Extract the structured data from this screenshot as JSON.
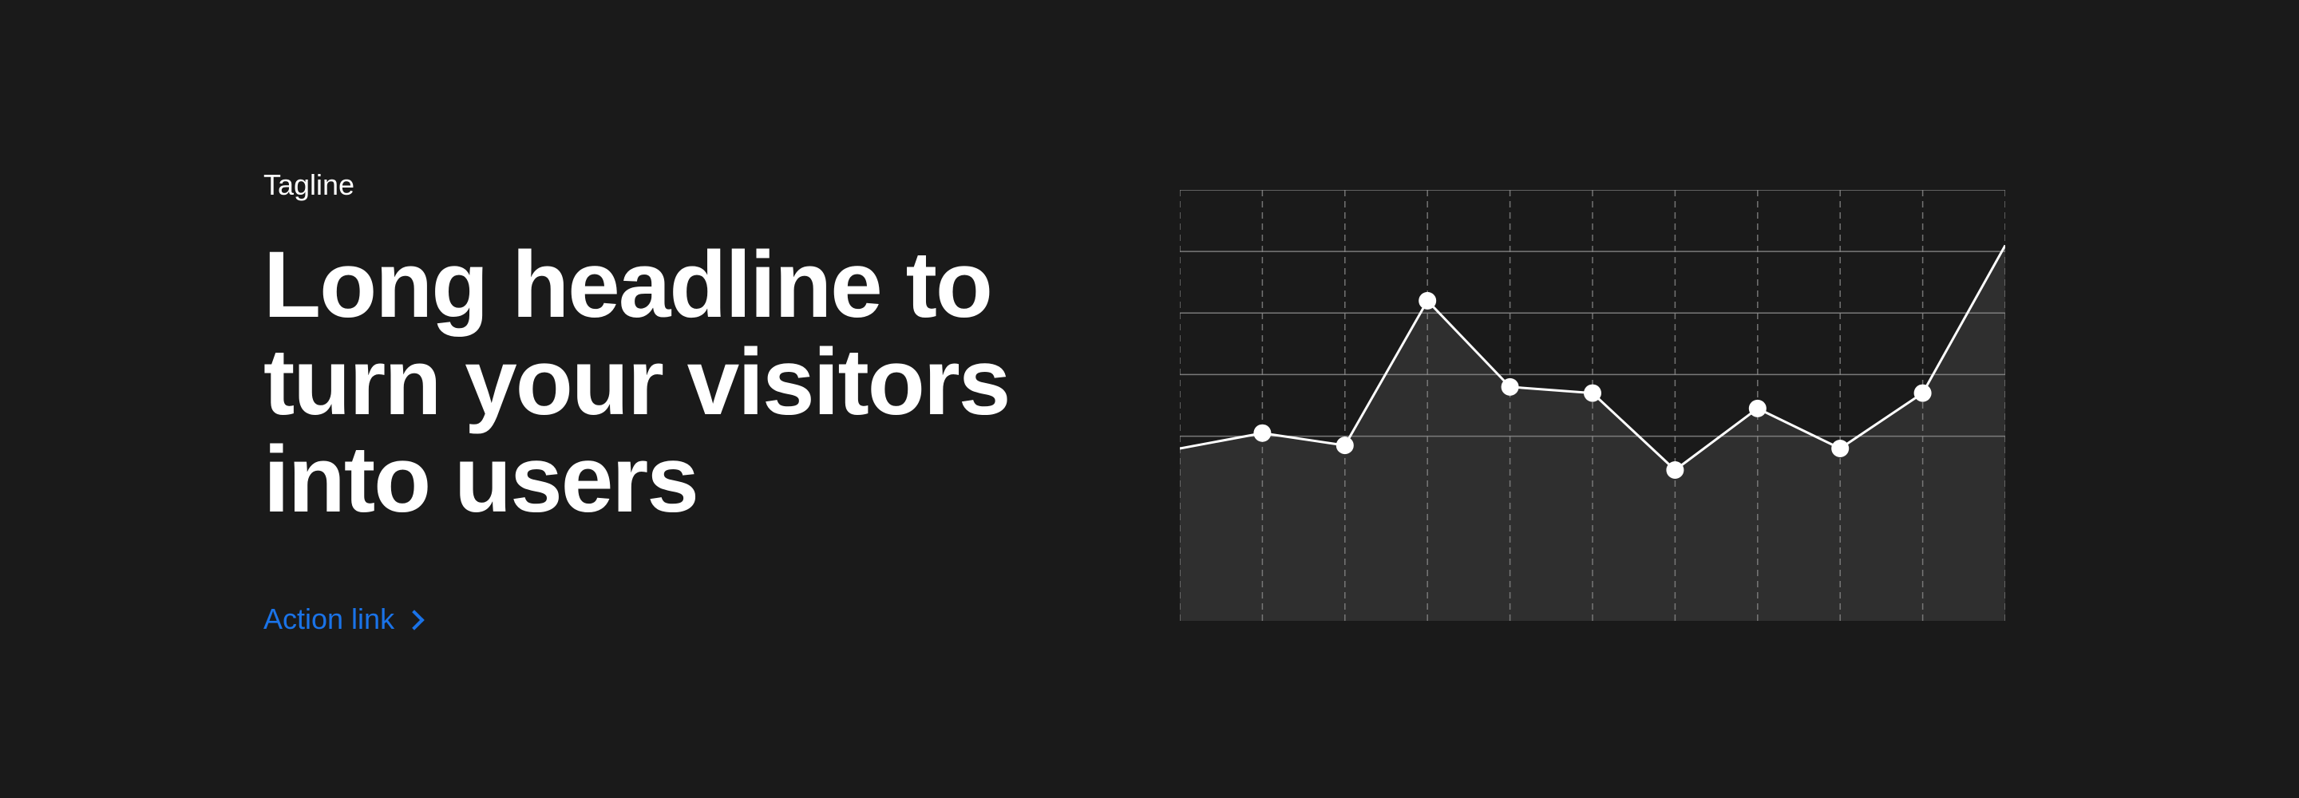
{
  "hero": {
    "tagline": "Tagline",
    "headline": "Long headline to turn your visitors into users",
    "action_link": "Action link",
    "action_icon": "chevron-right-icon"
  },
  "colors": {
    "background": "#1a1a1a",
    "text": "#ffffff",
    "accent": "#1a73e8",
    "area_fill": "#2f2f2f",
    "grid": "#8a8a8a"
  },
  "chart_data": {
    "type": "area",
    "x": [
      0,
      1,
      2,
      3,
      4,
      5,
      6,
      7,
      8,
      9,
      10
    ],
    "series": [
      {
        "values": [
          2.8,
          3.05,
          2.85,
          5.2,
          3.8,
          3.7,
          2.45,
          3.45,
          2.8,
          3.7,
          6.1
        ],
        "markers": [
          false,
          true,
          true,
          true,
          true,
          true,
          true,
          true,
          true,
          true,
          false
        ]
      }
    ],
    "xlim": [
      0,
      10
    ],
    "ylim": [
      0,
      7
    ],
    "grid": true,
    "legend": "none"
  }
}
